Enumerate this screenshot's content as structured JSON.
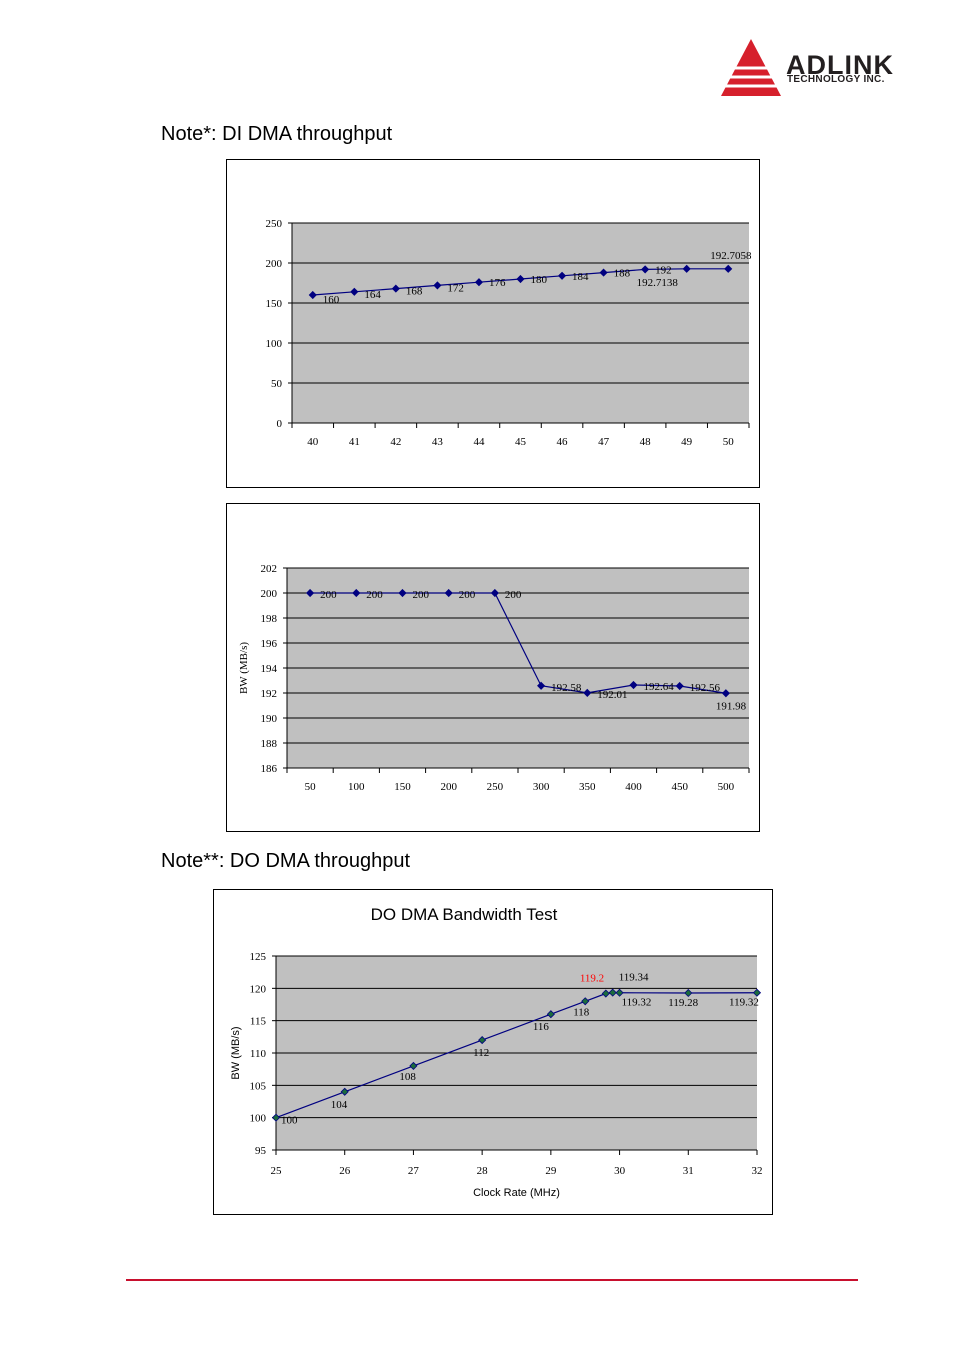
{
  "header": {
    "brand": "ADLINK",
    "brand_sub": "TECHNOLOGY INC.",
    "brand_color": "#d6202c",
    "footer_rule_color": "#c8102e"
  },
  "notes": {
    "di_title": "Note*: DI DMA throughput",
    "do_title": "Note**: DO DMA throughput"
  },
  "chart_data": [
    {
      "id": "di-chart-1",
      "type": "line",
      "title": "",
      "xlabel": "",
      "ylabel": "",
      "x": [
        "40",
        "41",
        "42",
        "43",
        "44",
        "45",
        "46",
        "47",
        "48",
        "49",
        "50"
      ],
      "series": [
        {
          "values": [
            160,
            164,
            168,
            172,
            176,
            180,
            184,
            188,
            192,
            192.7138,
            192.7058
          ]
        }
      ],
      "labels": [
        "160",
        "164",
        "168",
        "172",
        "176",
        "180",
        "184",
        "188",
        "192",
        "192.7138",
        "192.7058"
      ],
      "ylim": [
        0,
        250
      ],
      "yticks": [
        0,
        50,
        100,
        150,
        200,
        250
      ],
      "grid": true,
      "line_color": "#000080",
      "plot_bg": "#c0c0c0"
    },
    {
      "id": "di-chart-2",
      "type": "line",
      "title": "",
      "xlabel": "",
      "ylabel": "BW (MB/s)",
      "x": [
        "50",
        "100",
        "150",
        "200",
        "250",
        "300",
        "350",
        "400",
        "450",
        "500"
      ],
      "series": [
        {
          "values": [
            200,
            200,
            200,
            200,
            200,
            192.58,
            192.01,
            192.64,
            192.56,
            191.98
          ]
        }
      ],
      "labels": [
        "200",
        "200",
        "200",
        "200",
        "200",
        "192.58",
        "192.01",
        "192.64",
        "192.56",
        "191.98"
      ],
      "ylim": [
        186,
        202
      ],
      "yticks": [
        186,
        188,
        190,
        192,
        194,
        196,
        198,
        200,
        202
      ],
      "grid": true,
      "line_color": "#000080",
      "plot_bg": "#c0c0c0"
    },
    {
      "id": "do-chart",
      "type": "scatter",
      "title": "DO DMA Bandwidth Test",
      "xlabel": "Clock Rate (MHz)",
      "ylabel": "BW (MB/s)",
      "x": [
        25,
        26,
        27,
        28,
        29,
        29.5,
        29.8,
        29.9,
        30,
        31,
        32
      ],
      "series": [
        {
          "values": [
            100,
            104,
            108,
            112,
            116,
            118,
            119.2,
            119.34,
            119.32,
            119.28,
            119.32
          ]
        }
      ],
      "labels": [
        "100",
        "104",
        "108",
        "112",
        "116",
        "118",
        "119.2",
        "119.34",
        "119.32",
        "119.28",
        "119.32"
      ],
      "highlight_label": "119.2",
      "highlight_color": "#ff0000",
      "xlim": [
        25,
        32
      ],
      "xticks": [
        25,
        26,
        27,
        28,
        29,
        30,
        31,
        32
      ],
      "ylim": [
        95,
        125
      ],
      "yticks": [
        95,
        100,
        105,
        110,
        115,
        120,
        125
      ],
      "grid": true,
      "line_color": "#000080",
      "marker_color": "#1a6b3c",
      "plot_bg": "#c0c0c0"
    }
  ]
}
